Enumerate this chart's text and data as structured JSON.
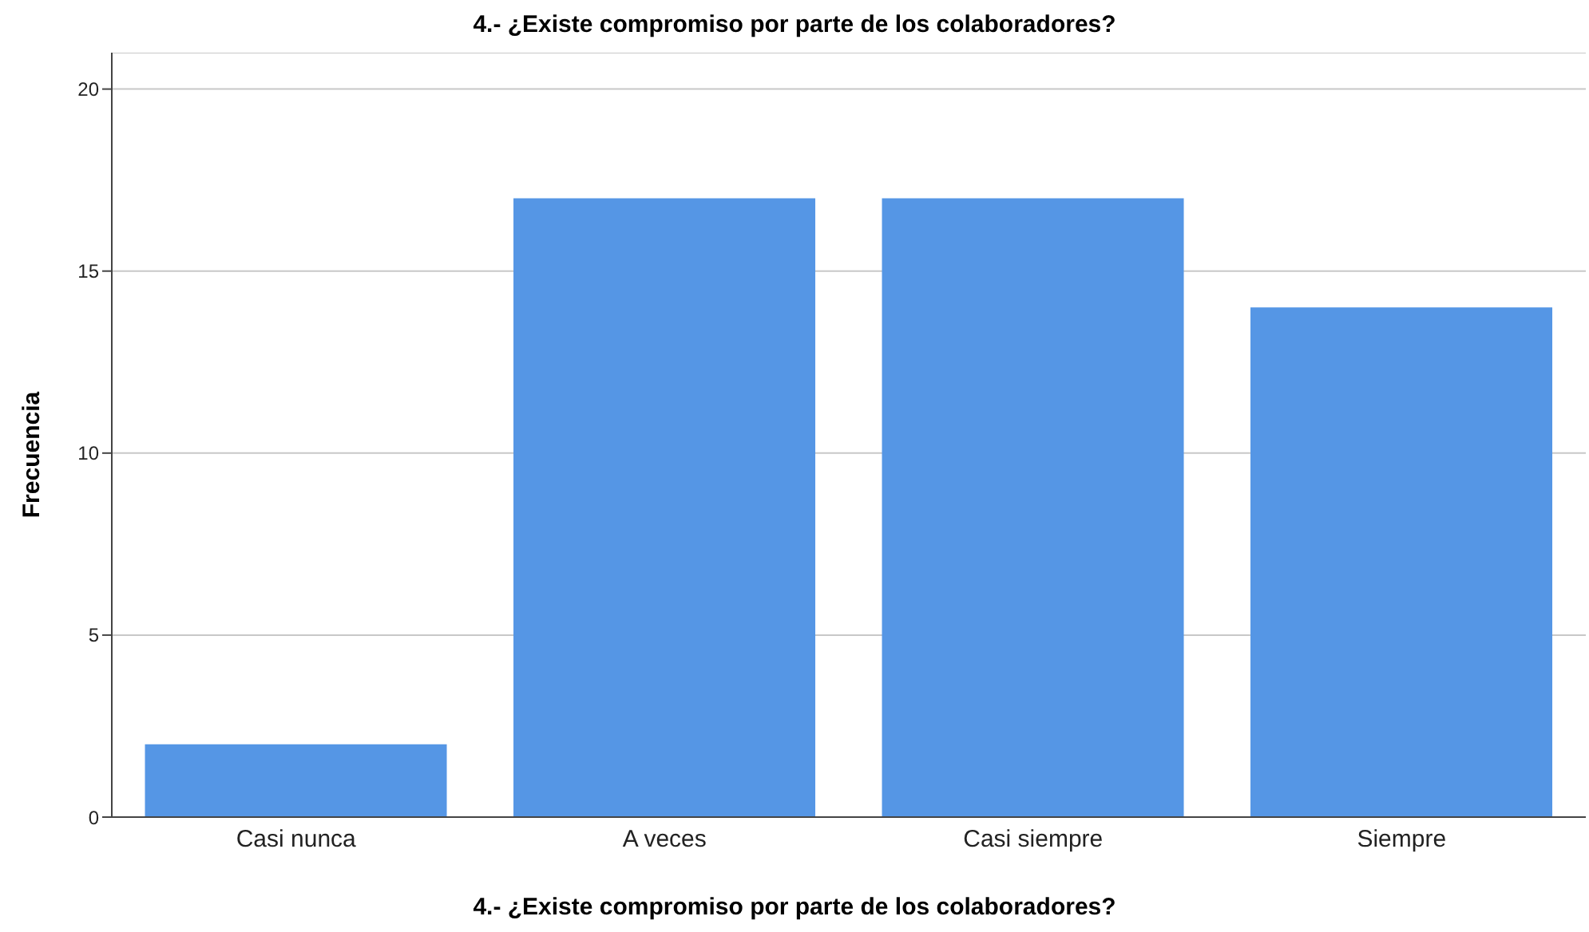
{
  "chart_data": {
    "type": "bar",
    "title": "4.- ¿Existe compromiso por parte de los colaboradores?",
    "xlabel": "4.- ¿Existe compromiso por parte de los colaboradores?",
    "ylabel": "Frecuencia",
    "categories": [
      "Casi nunca",
      "A veces",
      "Casi siempre",
      "Siempre"
    ],
    "values": [
      2,
      17,
      17,
      14
    ],
    "color": "#5596e5",
    "ylim": [
      0,
      21
    ],
    "yticks": [
      0,
      5,
      10,
      15,
      20
    ],
    "grid": "y"
  }
}
